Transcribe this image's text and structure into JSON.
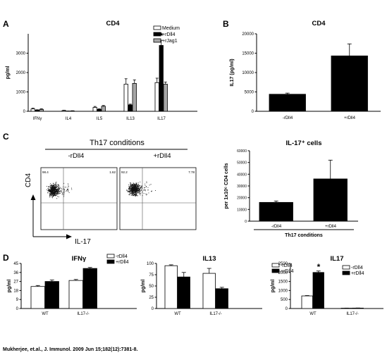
{
  "panels": {
    "A": {
      "letter": "A"
    },
    "B": {
      "letter": "B"
    },
    "C": {
      "letter": "C"
    },
    "D": {
      "letter": "D"
    }
  },
  "flow": {
    "header": "Th17 conditions",
    "col_left": "-rDll4",
    "col_right": "+rDll4",
    "quad_left_ul": "98.4",
    "quad_left_ur": "1.62",
    "quad_right_ul": "92.2",
    "quad_right_ur": "7.78",
    "y_label": "CD4",
    "x_label": "IL-17"
  },
  "citation": "Mukherjee, et.al., J. Immunol. 2009 Jun 15;182(12):7381-8.",
  "colors": {
    "medium": "#ffffff",
    "rdll4": "#000000",
    "rjag1": "#a6a6a6",
    "axis": "#000000"
  },
  "chart_data": [
    {
      "id": "A",
      "type": "bar",
      "title": "CD4",
      "ylabel": "pg/ml",
      "ylim": [
        0,
        4000
      ],
      "yticks": [
        0,
        1000,
        2000,
        3000
      ],
      "categories": [
        "IFNγ",
        "IL4",
        "IL5",
        "IL13",
        "IL17"
      ],
      "series": [
        {
          "name": "Medium",
          "color": "#ffffff",
          "values": [
            120,
            40,
            200,
            1400,
            1480
          ],
          "errors": [
            40,
            15,
            50,
            280,
            230
          ]
        },
        {
          "name": "+rDll4",
          "color": "#000000",
          "values": [
            60,
            10,
            100,
            330,
            3400
          ],
          "errors": [
            20,
            5,
            30,
            40,
            270
          ]
        },
        {
          "name": "+rJag1",
          "color": "#a6a6a6",
          "values": [
            100,
            20,
            260,
            1440,
            1400
          ],
          "errors": [
            30,
            10,
            40,
            180,
            110
          ]
        }
      ],
      "annotation": {
        "text": "*",
        "category": "IL17"
      }
    },
    {
      "id": "B",
      "type": "bar",
      "title": "CD4",
      "ylabel": "IL17 (pg/ml)",
      "ylim": [
        0,
        20000
      ],
      "yticks": [
        0,
        5000,
        10000,
        15000,
        20000
      ],
      "categories": [
        "-rDll4",
        "+rDll4"
      ],
      "values": [
        4400,
        14300
      ],
      "errors": [
        300,
        3100
      ]
    },
    {
      "id": "C",
      "type": "bar",
      "title": "IL-17⁺ cells",
      "ylabel": "per 1x10⁶ CD4 cells",
      "xlabel": "Th17 conditions",
      "ylim": [
        0,
        60000
      ],
      "yticks": [
        0,
        10000,
        20000,
        30000,
        40000,
        50000,
        60000
      ],
      "categories": [
        "-rDll4",
        "+rDll4"
      ],
      "values": [
        16000,
        36000
      ],
      "errors": [
        1200,
        16000
      ]
    },
    {
      "id": "D1",
      "type": "bar",
      "title": "IFNγ",
      "ylabel": "pg/ml",
      "ylim": [
        0,
        45
      ],
      "yticks": [
        0,
        9,
        18,
        27,
        36,
        45
      ],
      "categories": [
        "WT",
        "IL17-/-"
      ],
      "series": [
        {
          "name": "-rDll4",
          "color": "#ffffff",
          "values": [
            22,
            28
          ],
          "errors": [
            1,
            1
          ]
        },
        {
          "name": "+rDll4",
          "color": "#000000",
          "values": [
            27,
            40
          ],
          "errors": [
            1.5,
            1
          ]
        }
      ]
    },
    {
      "id": "D2",
      "type": "bar",
      "title": "IL13",
      "ylabel": "pg/ml",
      "ylim": [
        0,
        100
      ],
      "yticks": [
        0,
        25,
        50,
        75,
        100
      ],
      "categories": [
        "WT",
        "IL17-/-"
      ],
      "series": [
        {
          "name": "-rDll4",
          "color": "#ffffff",
          "values": [
            95,
            78
          ],
          "errors": [
            2,
            11
          ]
        },
        {
          "name": "+rDll4",
          "color": "#000000",
          "values": [
            70,
            44
          ],
          "errors": [
            10,
            3
          ]
        }
      ]
    },
    {
      "id": "D3",
      "type": "bar",
      "title": "IL17",
      "ylabel": "pg/ml",
      "ylim": [
        0,
        2500
      ],
      "yticks": [
        0,
        500,
        1000,
        1500,
        2000,
        2500
      ],
      "categories": [
        "WT",
        "IL17-/-"
      ],
      "series": [
        {
          "name": "-rDll4",
          "color": "#ffffff",
          "values": [
            700,
            20
          ],
          "errors": [
            20,
            5
          ]
        },
        {
          "name": "+rDll4",
          "color": "#000000",
          "values": [
            2000,
            25
          ],
          "errors": [
            80,
            5
          ]
        }
      ],
      "annotation": {
        "text": "*",
        "category": "WT"
      }
    }
  ]
}
